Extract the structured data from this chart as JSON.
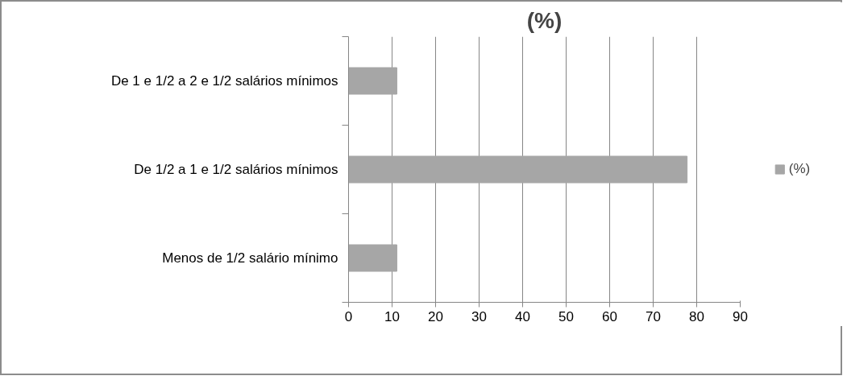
{
  "chart_data": {
    "type": "bar",
    "orientation": "horizontal",
    "title": "(%)",
    "categories": [
      "De 1 e 1/2 a 2 e 1/2 salários mínimos",
      "De 1/2 a 1 e 1/2 salários mínimos",
      "Menos de 1/2 salário mínimo"
    ],
    "series": [
      {
        "name": "(%)",
        "color": "#a6a6a6",
        "values": [
          11.1,
          77.8,
          11.1
        ]
      }
    ],
    "xlim": [
      0,
      90
    ],
    "xticks": [
      0,
      10,
      20,
      30,
      40,
      50,
      60,
      70,
      80,
      90
    ],
    "grid": "x",
    "legend": "right"
  }
}
